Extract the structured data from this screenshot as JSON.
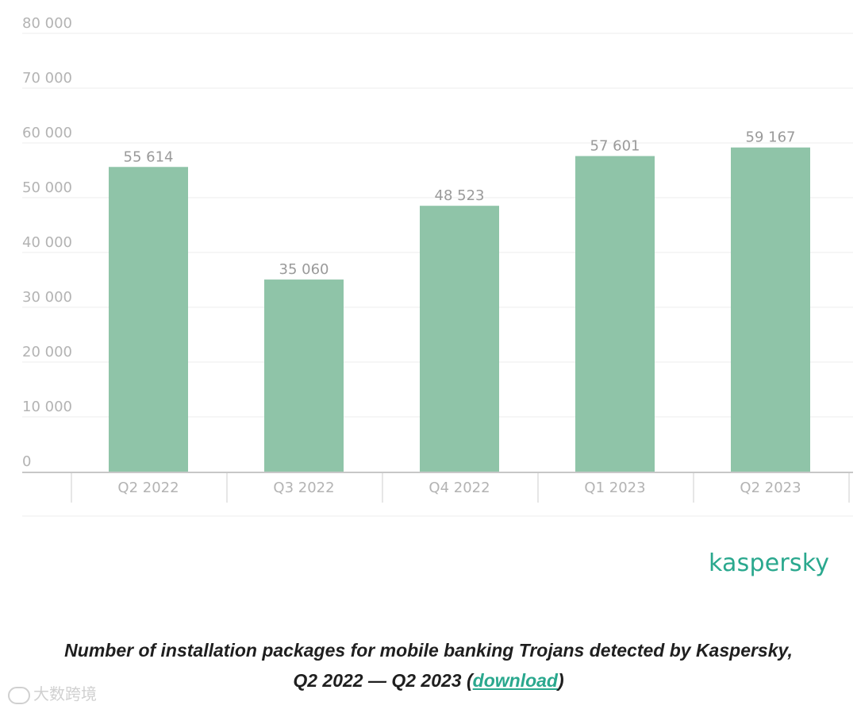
{
  "chart_data": {
    "type": "bar",
    "categories": [
      "Q2 2022",
      "Q3 2022",
      "Q4 2022",
      "Q1 2023",
      "Q2 2023"
    ],
    "values": [
      55614,
      35060,
      48523,
      57601,
      59167
    ],
    "value_labels": [
      "55 614",
      "35 060",
      "48 523",
      "57 601",
      "59 167"
    ],
    "y_ticks": [
      0,
      10000,
      20000,
      30000,
      40000,
      50000,
      60000,
      70000,
      80000
    ],
    "y_tick_labels": [
      "0",
      "10 000",
      "20 000",
      "30 000",
      "40 000",
      "50 000",
      "60 000",
      "70 000",
      "80 000"
    ],
    "ylim": [
      0,
      80000
    ],
    "grid": true,
    "bar_color": "#8fc4a8"
  },
  "logo_text": "kaspersky",
  "caption": {
    "line1": "Number of installation packages for mobile banking Trojans detected by Kaspersky,",
    "line2_prefix": "Q2 2022 — Q2 2023 (",
    "link": "download",
    "line2_suffix": ")"
  },
  "watermark": "大数跨境",
  "colors": {
    "accent": "#2aa88e",
    "bar": "#8fc4a8"
  }
}
